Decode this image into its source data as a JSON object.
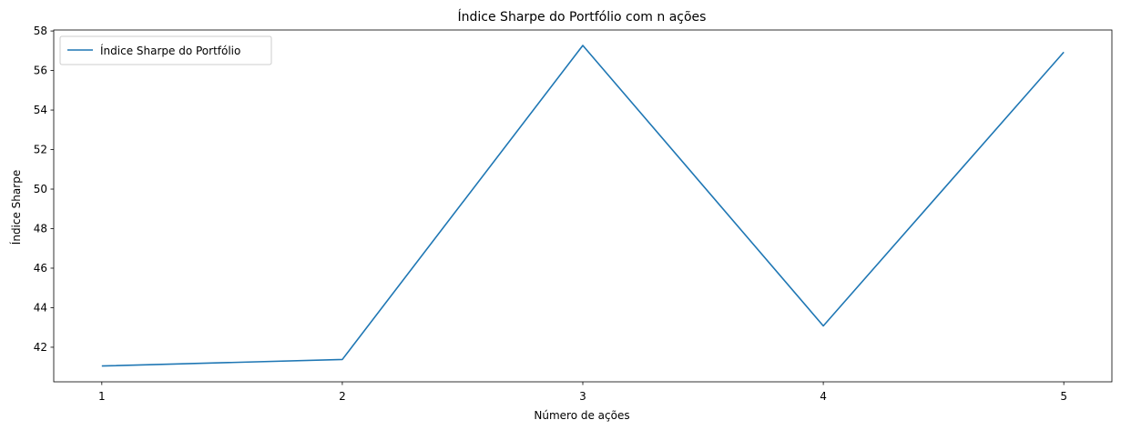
{
  "chart_data": {
    "type": "line",
    "title": "Índice Sharpe do Portfólio com n ações",
    "xlabel": "Número de ações",
    "ylabel": "Índice Sharpe",
    "x": [
      1,
      2,
      3,
      4,
      5
    ],
    "xticks": [
      "1",
      "2",
      "3",
      "4",
      "5"
    ],
    "yticks": [
      42,
      44,
      46,
      48,
      50,
      52,
      54,
      56,
      58
    ],
    "ylim": [
      40.25,
      58.05
    ],
    "xlim": [
      0.8,
      5.2
    ],
    "grid": false,
    "legend_position": "top-left",
    "series": [
      {
        "name": "Índice Sharpe do Portfólio",
        "color": "#1f77b4",
        "values": [
          41.05,
          41.38,
          57.27,
          43.08,
          56.93
        ]
      }
    ]
  }
}
